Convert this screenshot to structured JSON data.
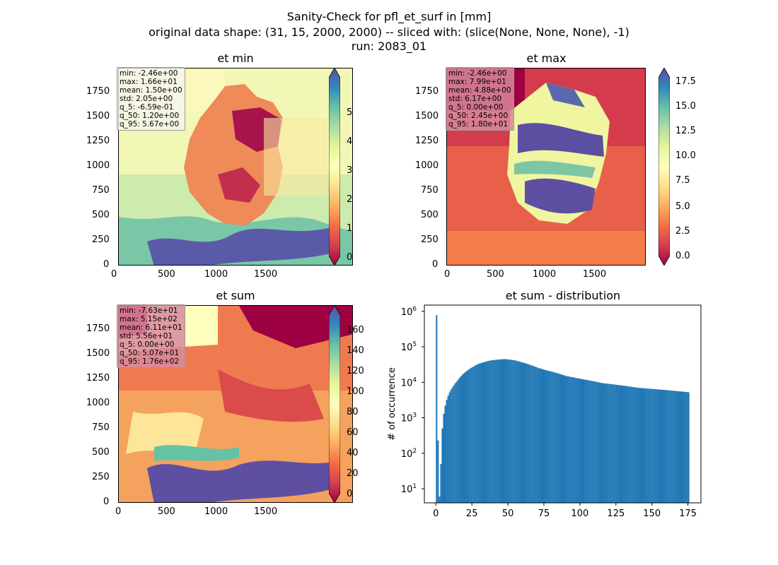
{
  "figure": {
    "title_lines": [
      "Sanity-Check for pfl_et_surf in [mm]",
      "original data shape: (31, 15, 2000, 2000) -- sliced with: (slice(None, None, None), -1)",
      "run: 2083_01"
    ]
  },
  "colormap": {
    "name": "Spectral",
    "stops": [
      "#9e0142",
      "#d53e4f",
      "#f46d43",
      "#fdae61",
      "#fee08b",
      "#ffffbf",
      "#e6f598",
      "#abdda4",
      "#66c2a5",
      "#3288bd",
      "#5e4fa2"
    ]
  },
  "map_axes": {
    "x_ticks": [
      "0",
      "500",
      "1000",
      "1500"
    ],
    "y_ticks": [
      "0",
      "250",
      "500",
      "750",
      "1000",
      "1250",
      "1500",
      "1750"
    ]
  },
  "panels": {
    "et_min": {
      "title": "et min",
      "stats": [
        "min: -2.46e+00",
        "max: 1.66e+01",
        "mean: 1.50e+00",
        "std: 2.05e+00",
        "q_5: -6.59e-01",
        "q_50: 1.20e+00",
        "q_95: 5.67e+00"
      ],
      "stats_bg": "#f7f7ef",
      "cbar_ticks": [
        "5",
        "4",
        "3",
        "2",
        "1",
        "0"
      ]
    },
    "et_max": {
      "title": "et max",
      "stats": [
        "min: -2.46e+00",
        "max: 7.99e+01",
        "mean: 4.88e+00",
        "std: 6.17e+00",
        "q_5: 0.00e+00",
        "q_50: 2.45e+00",
        "q_95: 1.80e+01"
      ],
      "stats_bg": "#d98a9c",
      "cbar_ticks": [
        "17.5",
        "15.0",
        "12.5",
        "10.0",
        "7.5",
        "5.0",
        "2.5",
        "0.0"
      ]
    },
    "et_sum": {
      "title": "et sum",
      "stats": [
        "min: -7.63e+01",
        "max: 5.15e+02",
        "mean: 6.11e+01",
        "std: 5.56e+01",
        "q_5: 0.00e+00",
        "q_50: 5.07e+01",
        "q_95: 1.76e+02"
      ],
      "stats_bg": "#d98a9c",
      "cbar_ticks": [
        "160",
        "140",
        "120",
        "100",
        "80",
        "60",
        "40",
        "20",
        "0"
      ]
    }
  },
  "chart_data": {
    "type": "bar",
    "title": "et sum - distribution",
    "xlabel": "",
    "ylabel": "# of occurrence",
    "yscale": "log",
    "xlim": [
      -8,
      184
    ],
    "ylim": [
      4,
      1500000
    ],
    "x_ticks": [
      0,
      25,
      50,
      75,
      100,
      125,
      150,
      175
    ],
    "y_ticks": [
      10,
      100,
      1000,
      10000,
      100000,
      1000000
    ],
    "y_tick_labels": [
      "10^1",
      "10^2",
      "10^3",
      "10^4",
      "10^5",
      "10^6"
    ],
    "bar_color": "#1f77b4",
    "bins": [
      [
        0.5,
        780000
      ],
      [
        1.5,
        230
      ],
      [
        2.5,
        6
      ],
      [
        3.5,
        50
      ],
      [
        4.5,
        500
      ],
      [
        5.5,
        1300
      ],
      [
        6.5,
        2200
      ],
      [
        7.5,
        3200
      ],
      [
        8.5,
        4200
      ],
      [
        9.5,
        5200
      ],
      [
        10.5,
        6200
      ],
      [
        11.5,
        7200
      ],
      [
        12.5,
        8300
      ],
      [
        13.5,
        9500
      ],
      [
        14.5,
        10500
      ],
      [
        15.5,
        12000
      ],
      [
        16.5,
        13500
      ],
      [
        17.5,
        15000
      ],
      [
        18.5,
        16500
      ],
      [
        19.5,
        18000
      ],
      [
        20.5,
        19500
      ],
      [
        21.5,
        21000
      ],
      [
        22.5,
        22500
      ],
      [
        23.5,
        24000
      ],
      [
        24.5,
        25500
      ],
      [
        25.5,
        27000
      ],
      [
        26.5,
        28500
      ],
      [
        27.5,
        30000
      ],
      [
        28.5,
        31500
      ],
      [
        29.5,
        33000
      ],
      [
        30.5,
        34000
      ],
      [
        31.5,
        35000
      ],
      [
        32.5,
        36000
      ],
      [
        33.5,
        37000
      ],
      [
        34.5,
        38000
      ],
      [
        35.5,
        39000
      ],
      [
        36.5,
        40000
      ],
      [
        37.5,
        41000
      ],
      [
        38.5,
        41500
      ],
      [
        39.5,
        42000
      ],
      [
        40.5,
        42500
      ],
      [
        41.5,
        43000
      ],
      [
        42.5,
        43500
      ],
      [
        43.5,
        44000
      ],
      [
        44.5,
        44000
      ],
      [
        45.5,
        44500
      ],
      [
        46.5,
        45000
      ],
      [
        47.5,
        45000
      ],
      [
        48.5,
        45000
      ],
      [
        49.5,
        44500
      ],
      [
        50.5,
        44000
      ],
      [
        51.5,
        43500
      ],
      [
        52.5,
        43000
      ],
      [
        53.5,
        42500
      ],
      [
        54.5,
        42000
      ],
      [
        55.5,
        41000
      ],
      [
        56.5,
        40000
      ],
      [
        57.5,
        39000
      ],
      [
        58.5,
        38000
      ],
      [
        59.5,
        37000
      ],
      [
        60.5,
        36000
      ],
      [
        61.5,
        35000
      ],
      [
        62.5,
        34000
      ],
      [
        63.5,
        33000
      ],
      [
        64.5,
        32000
      ],
      [
        65.5,
        31000
      ],
      [
        66.5,
        30000
      ],
      [
        67.5,
        29000
      ],
      [
        68.5,
        28000
      ],
      [
        69.5,
        27000
      ],
      [
        70.5,
        26000
      ],
      [
        71.5,
        25000
      ],
      [
        72.5,
        24500
      ],
      [
        73.5,
        24000
      ],
      [
        74.5,
        23000
      ],
      [
        75.5,
        22500
      ],
      [
        76.5,
        22000
      ],
      [
        77.5,
        21500
      ],
      [
        78.5,
        21000
      ],
      [
        79.5,
        20500
      ],
      [
        80.5,
        20000
      ],
      [
        81.5,
        19500
      ],
      [
        82.5,
        19000
      ],
      [
        83.5,
        18500
      ],
      [
        84.5,
        18000
      ],
      [
        85.5,
        17500
      ],
      [
        86.5,
        17000
      ],
      [
        87.5,
        16500
      ],
      [
        88.5,
        16000
      ],
      [
        89.5,
        15500
      ],
      [
        90.5,
        15000
      ],
      [
        91.5,
        14800
      ],
      [
        92.5,
        14500
      ],
      [
        93.5,
        14200
      ],
      [
        94.5,
        14000
      ],
      [
        95.5,
        13800
      ],
      [
        96.5,
        13500
      ],
      [
        97.5,
        13200
      ],
      [
        98.5,
        13000
      ],
      [
        99.5,
        12800
      ],
      [
        100.5,
        12500
      ],
      [
        101.5,
        12300
      ],
      [
        102.5,
        12100
      ],
      [
        103.5,
        11900
      ],
      [
        104.5,
        11700
      ],
      [
        105.5,
        11500
      ],
      [
        106.5,
        11300
      ],
      [
        107.5,
        11100
      ],
      [
        108.5,
        10900
      ],
      [
        109.5,
        10700
      ],
      [
        110.5,
        10500
      ],
      [
        111.5,
        10300
      ],
      [
        112.5,
        10100
      ],
      [
        113.5,
        9900
      ],
      [
        114.5,
        9700
      ],
      [
        115.5,
        9500
      ],
      [
        116.5,
        9400
      ],
      [
        117.5,
        9300
      ],
      [
        118.5,
        9200
      ],
      [
        119.5,
        9100
      ],
      [
        120.5,
        9000
      ],
      [
        121.5,
        8900
      ],
      [
        122.5,
        8800
      ],
      [
        123.5,
        8700
      ],
      [
        124.5,
        8600
      ],
      [
        125.5,
        8500
      ],
      [
        126.5,
        8400
      ],
      [
        127.5,
        8300
      ],
      [
        128.5,
        8200
      ],
      [
        129.5,
        8100
      ],
      [
        130.5,
        8000
      ],
      [
        131.5,
        7900
      ],
      [
        132.5,
        7800
      ],
      [
        133.5,
        7700
      ],
      [
        134.5,
        7600
      ],
      [
        135.5,
        7500
      ],
      [
        136.5,
        7400
      ],
      [
        137.5,
        7300
      ],
      [
        138.5,
        7200
      ],
      [
        139.5,
        7100
      ],
      [
        140.5,
        7000
      ],
      [
        141.5,
        6950
      ],
      [
        142.5,
        6900
      ],
      [
        143.5,
        6850
      ],
      [
        144.5,
        6800
      ],
      [
        145.5,
        6750
      ],
      [
        146.5,
        6700
      ],
      [
        147.5,
        6650
      ],
      [
        148.5,
        6600
      ],
      [
        149.5,
        6550
      ],
      [
        150.5,
        6500
      ],
      [
        151.5,
        6450
      ],
      [
        152.5,
        6400
      ],
      [
        153.5,
        6350
      ],
      [
        154.5,
        6300
      ],
      [
        155.5,
        6250
      ],
      [
        156.5,
        6200
      ],
      [
        157.5,
        6150
      ],
      [
        158.5,
        6100
      ],
      [
        159.5,
        6050
      ],
      [
        160.5,
        6000
      ],
      [
        161.5,
        5950
      ],
      [
        162.5,
        5900
      ],
      [
        163.5,
        5850
      ],
      [
        164.5,
        5800
      ],
      [
        165.5,
        5750
      ],
      [
        166.5,
        5700
      ],
      [
        167.5,
        5650
      ],
      [
        168.5,
        5600
      ],
      [
        169.5,
        5550
      ],
      [
        170.5,
        5500
      ],
      [
        171.5,
        5450
      ],
      [
        172.5,
        5400
      ],
      [
        173.5,
        5350
      ],
      [
        174.5,
        5300
      ],
      [
        175.5,
        5250
      ]
    ]
  }
}
